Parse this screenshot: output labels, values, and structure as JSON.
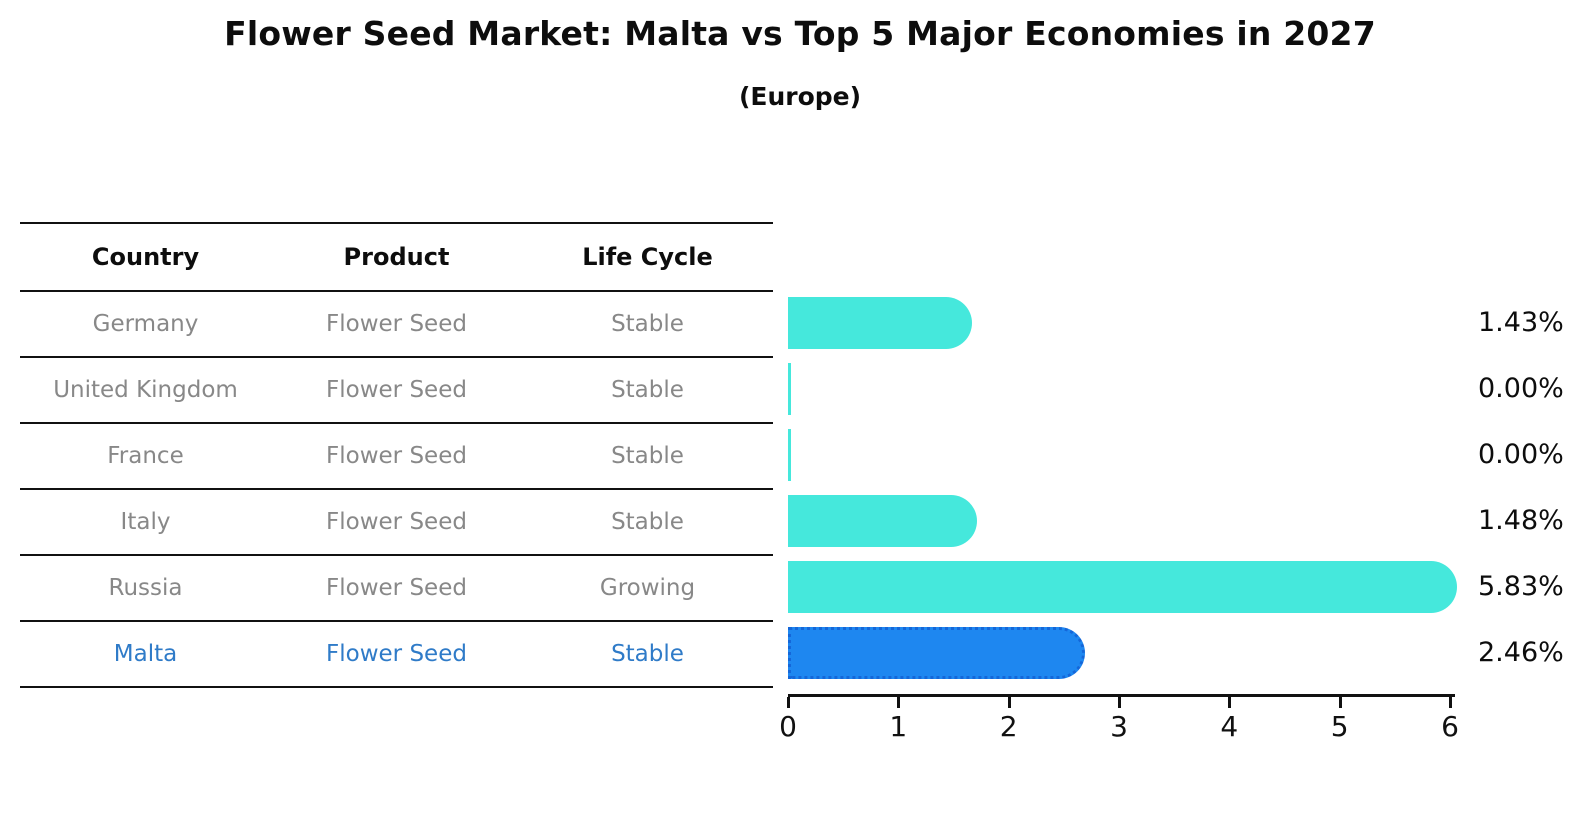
{
  "title": "Flower Seed Market: Malta vs Top 5 Major Economies in 2027",
  "subtitle": "(Europe)",
  "table": {
    "headers": [
      "Country",
      "Product",
      "Life Cycle"
    ],
    "rows": [
      {
        "country": "Germany",
        "product": "Flower Seed",
        "life_cycle": "Stable"
      },
      {
        "country": "United Kingdom",
        "product": "Flower Seed",
        "life_cycle": "Stable"
      },
      {
        "country": "France",
        "product": "Flower Seed",
        "life_cycle": "Stable"
      },
      {
        "country": "Italy",
        "product": "Flower Seed",
        "life_cycle": "Stable"
      },
      {
        "country": "Russia",
        "product": "Flower Seed",
        "life_cycle": "Growing"
      },
      {
        "country": "Malta",
        "product": "Flower Seed",
        "life_cycle": "Stable"
      }
    ],
    "highlight_row": "Malta"
  },
  "chart_data": {
    "type": "bar",
    "orientation": "horizontal",
    "title": "Flower Seed Market: Malta vs Top 5 Major Economies in 2027",
    "subtitle": "(Europe)",
    "categories": [
      "Germany",
      "United Kingdom",
      "France",
      "Italy",
      "Russia",
      "Malta"
    ],
    "values": [
      1.43,
      0.0,
      0.0,
      1.48,
      5.83,
      2.46
    ],
    "value_labels": [
      "1.43%",
      "0.00%",
      "0.00%",
      "1.48%",
      "5.83%",
      "2.46%"
    ],
    "xlabel": "",
    "ylabel": "",
    "xlim": [
      0,
      6
    ],
    "x_ticks": [
      "0",
      "1",
      "2",
      "3",
      "4",
      "5",
      "6"
    ],
    "grid": false,
    "legend": false,
    "highlight_index": 5,
    "colors": {
      "bar": "#45E8DC",
      "highlight_bar": "#1E87F0",
      "highlight_border": "#1467D9",
      "row_text": "#888888",
      "highlight_text": "#2F7BC8",
      "axis": "#111111"
    }
  }
}
